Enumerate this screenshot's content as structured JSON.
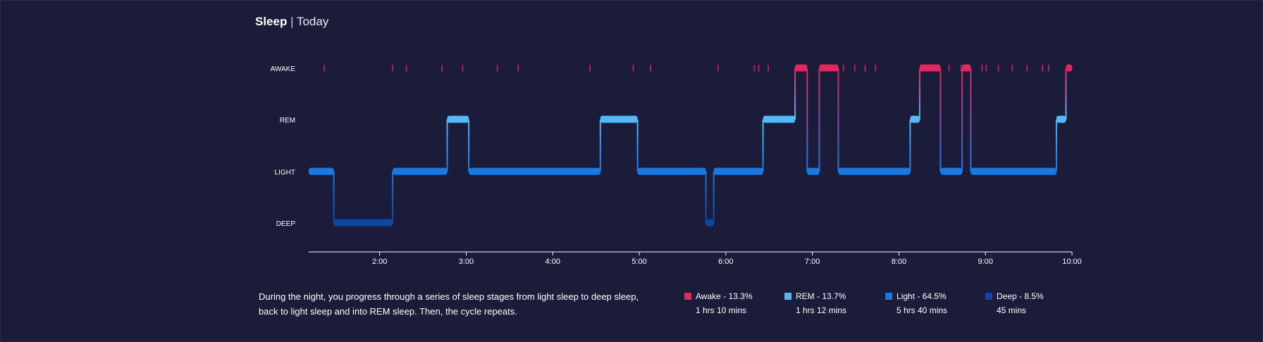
{
  "header": {
    "title": "Sleep",
    "separator": "|",
    "subtitle": "Today"
  },
  "description": "During the night, you progress through a series of sleep stages from light sleep to deep sleep, back to light sleep and into REM sleep. Then, the cycle repeats.",
  "legend": [
    {
      "stage": "awake",
      "label": "Awake - 13.3%",
      "duration": "1 hrs 10 mins",
      "color": "#e0285f"
    },
    {
      "stage": "rem",
      "label": "REM - 13.7%",
      "duration": "1 hrs 12 mins",
      "color": "#55b9f8"
    },
    {
      "stage": "light",
      "label": "Light - 64.5%",
      "duration": "5 hrs 40 mins",
      "color": "#1a7ae3"
    },
    {
      "stage": "deep",
      "label": "Deep - 8.5%",
      "duration": "45 mins",
      "color": "#0d47a3"
    }
  ],
  "chart_data": {
    "type": "step",
    "title": "",
    "xlabel": "",
    "ylabel": "",
    "x_unit": "hour of day",
    "xlim": [
      1.18,
      10.0
    ],
    "x_ticks": [
      {
        "value": 2,
        "label": "2:00"
      },
      {
        "value": 3,
        "label": "3:00"
      },
      {
        "value": 4,
        "label": "4:00"
      },
      {
        "value": 5,
        "label": "5:00"
      },
      {
        "value": 6,
        "label": "6:00"
      },
      {
        "value": 7,
        "label": "7:00"
      },
      {
        "value": 8,
        "label": "8:00"
      },
      {
        "value": 9,
        "label": "9:00"
      },
      {
        "value": 10,
        "label": "10:00"
      }
    ],
    "stages": [
      {
        "key": "awake",
        "label": "AWAKE",
        "color": "#e0285f"
      },
      {
        "key": "rem",
        "label": "REM",
        "color": "#55b9f8"
      },
      {
        "key": "light",
        "label": "LIGHT",
        "color": "#1a7ae3"
      },
      {
        "key": "deep",
        "label": "DEEP",
        "color": "#0d47a3"
      }
    ],
    "segments": [
      {
        "stage": "light",
        "start": 1.18,
        "end": 1.47
      },
      {
        "stage": "deep",
        "start": 1.47,
        "end": 2.15
      },
      {
        "stage": "light",
        "start": 2.15,
        "end": 2.78
      },
      {
        "stage": "rem",
        "start": 2.78,
        "end": 3.03
      },
      {
        "stage": "light",
        "start": 3.03,
        "end": 4.55
      },
      {
        "stage": "rem",
        "start": 4.55,
        "end": 4.98
      },
      {
        "stage": "light",
        "start": 4.98,
        "end": 5.77
      },
      {
        "stage": "deep",
        "start": 5.77,
        "end": 5.86
      },
      {
        "stage": "light",
        "start": 5.86,
        "end": 6.43
      },
      {
        "stage": "rem",
        "start": 6.43,
        "end": 6.8
      },
      {
        "stage": "awake",
        "start": 6.8,
        "end": 6.94
      },
      {
        "stage": "light",
        "start": 6.94,
        "end": 7.08
      },
      {
        "stage": "awake",
        "start": 7.08,
        "end": 7.3
      },
      {
        "stage": "light",
        "start": 7.3,
        "end": 8.13
      },
      {
        "stage": "rem",
        "start": 8.13,
        "end": 8.24
      },
      {
        "stage": "awake",
        "start": 8.24,
        "end": 8.48
      },
      {
        "stage": "light",
        "start": 8.48,
        "end": 8.73
      },
      {
        "stage": "awake",
        "start": 8.73,
        "end": 8.83
      },
      {
        "stage": "light",
        "start": 8.83,
        "end": 9.82
      },
      {
        "stage": "rem",
        "start": 9.82,
        "end": 9.93
      },
      {
        "stage": "awake",
        "start": 9.93,
        "end": 10.0
      }
    ],
    "brief_awakenings": [
      1.36,
      2.15,
      2.31,
      2.72,
      2.96,
      3.36,
      3.6,
      4.43,
      4.93,
      5.13,
      5.91,
      6.33,
      6.38,
      6.49,
      7.36,
      7.49,
      7.61,
      7.73,
      8.58,
      8.72,
      8.96,
      9.01,
      9.15,
      9.31,
      9.48,
      9.66,
      9.73
    ]
  }
}
